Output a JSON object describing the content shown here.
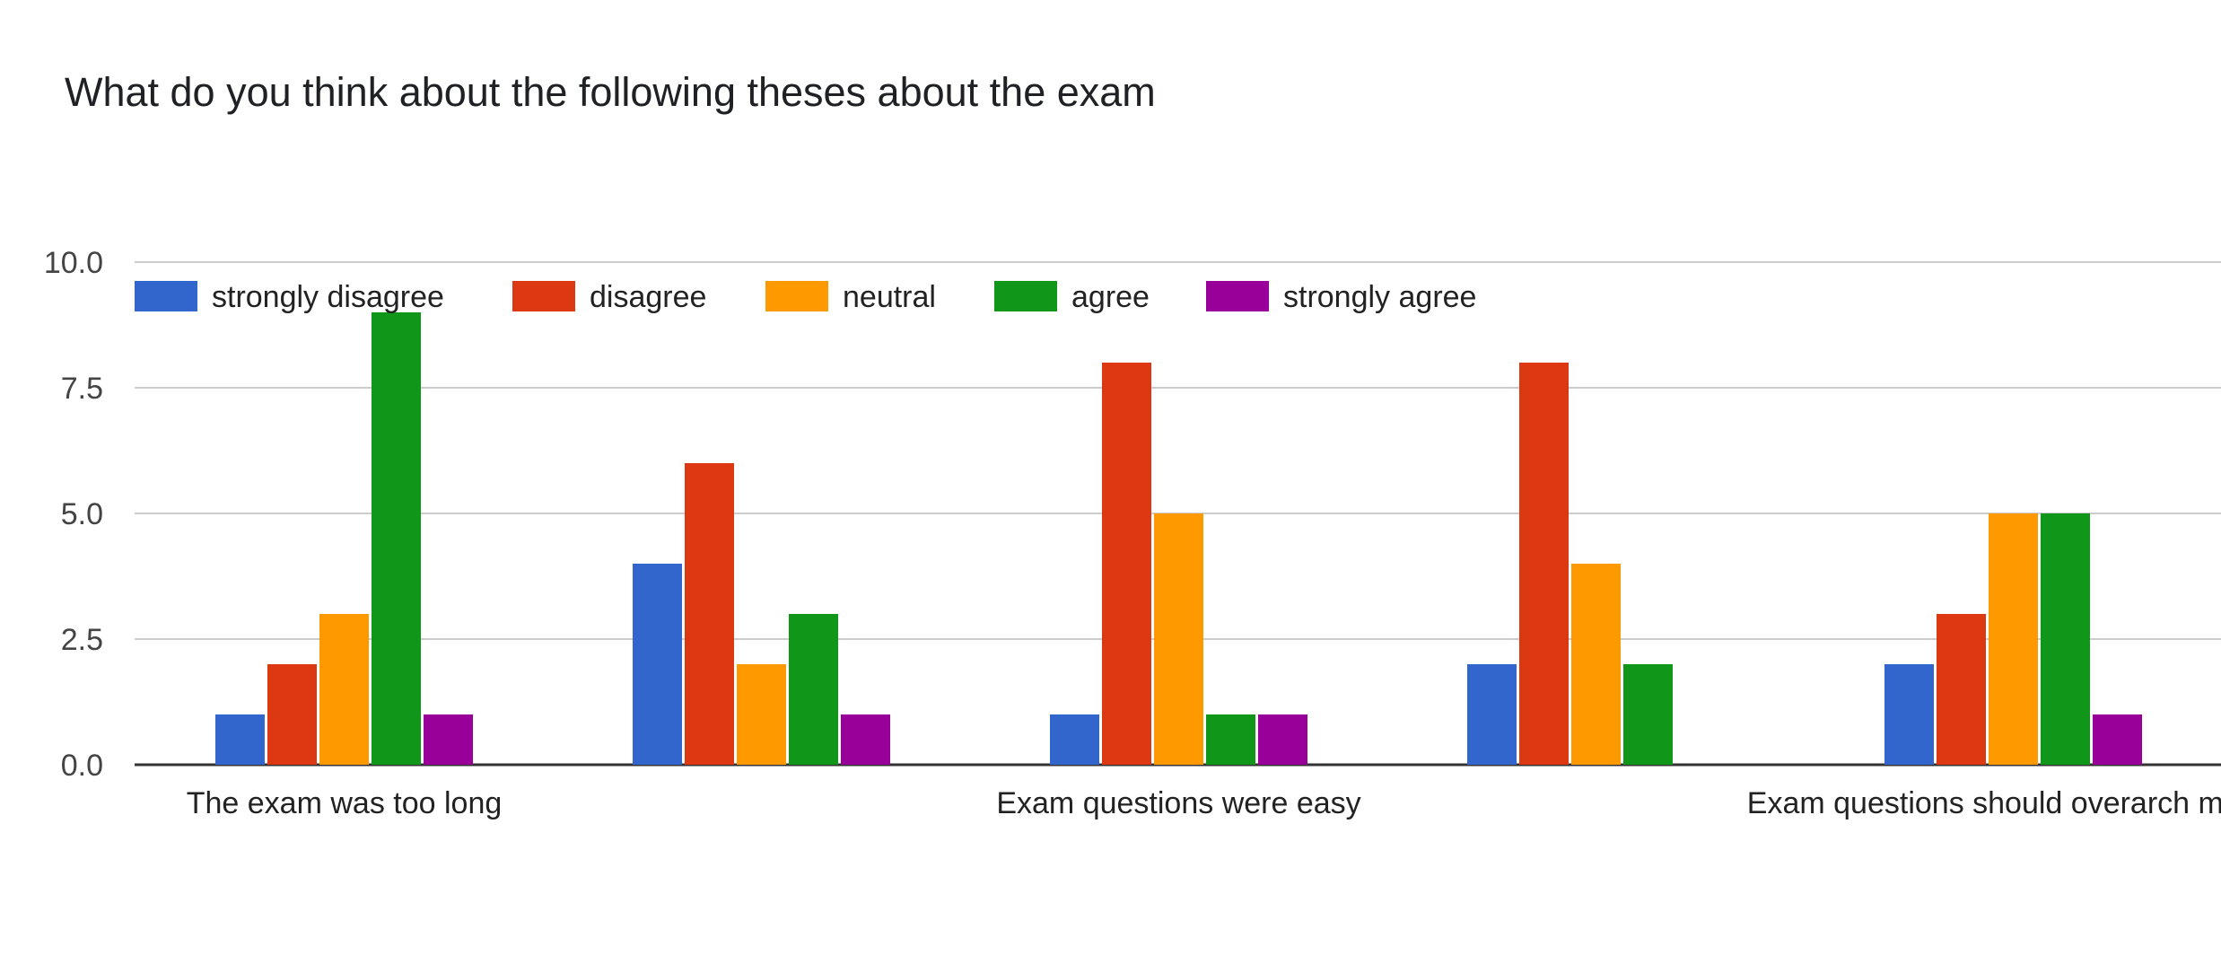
{
  "chart_data": {
    "type": "bar",
    "title": "What do you think about the following theses about the exam",
    "xlabel": "",
    "ylabel": "",
    "ylim": [
      0,
      10
    ],
    "y_ticks": [
      "0.0",
      "2.5",
      "5.0",
      "7.5",
      "10.0"
    ],
    "y_tick_values": [
      0,
      2.5,
      5,
      7.5,
      10
    ],
    "grid": true,
    "legend_position": "top-left",
    "categories": [
      "The exam was too long",
      "",
      "Exam questions were easy",
      "",
      "Exam questions should overarch multip"
    ],
    "series": [
      {
        "name": "strongly disagree",
        "color": "#3366cc",
        "values": [
          1,
          4,
          1,
          2,
          2
        ]
      },
      {
        "name": "disagree",
        "color": "#dc3912",
        "values": [
          2,
          6,
          8,
          8,
          3
        ]
      },
      {
        "name": "neutral",
        "color": "#ff9900",
        "values": [
          3,
          2,
          5,
          4,
          5
        ]
      },
      {
        "name": "agree",
        "color": "#109618",
        "values": [
          9,
          3,
          1,
          2,
          5
        ]
      },
      {
        "name": "strongly agree",
        "color": "#990099",
        "values": [
          1,
          1,
          1,
          0,
          1
        ]
      }
    ]
  }
}
